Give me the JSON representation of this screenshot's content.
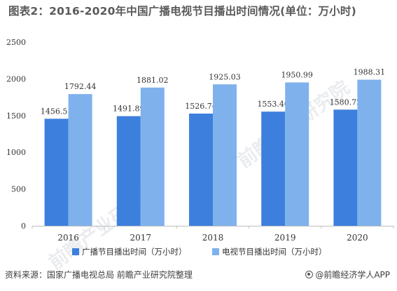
{
  "title": "图表2：2016-2020年中国广播电视节目播出时间情况(单位：万小时)",
  "source": "资料来源：国家广播电视总局 前瞻产业研究院整理",
  "brand": "@前瞻经济学人APP",
  "watermark": "前瞻产业研究院",
  "colors": {
    "series1": "#3d7fdc",
    "series2": "#7fb2ec",
    "axis": "#bfbfbf",
    "text": "#333333"
  },
  "chart_data": {
    "type": "bar",
    "categories": [
      "2016",
      "2017",
      "2018",
      "2019",
      "2020"
    ],
    "series": [
      {
        "name": "广播节目播出时间（万小时）",
        "values": [
          1456.51,
          1491.89,
          1526.74,
          1553.4,
          1580.72
        ]
      },
      {
        "name": "电视节目播出时间（万小时）",
        "values": [
          1792.44,
          1881.02,
          1925.03,
          1950.99,
          1988.31
        ]
      }
    ],
    "yticks": [
      0,
      500,
      1000,
      1500,
      2000,
      2500
    ],
    "ylim": [
      0,
      2500
    ],
    "legend": "bottom",
    "grid": false
  }
}
